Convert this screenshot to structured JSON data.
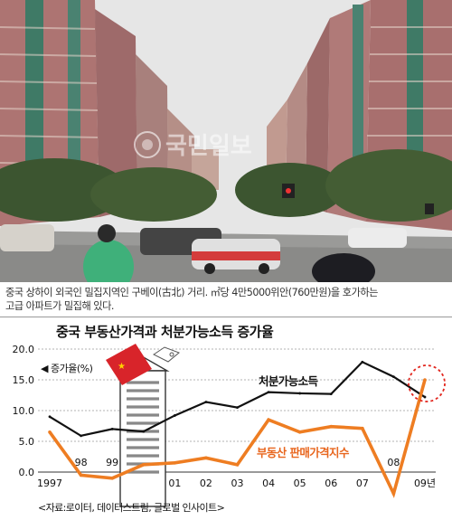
{
  "photo": {
    "watermark": "국민일보",
    "sky_color": "#e7e7e7",
    "building_color": "#b97c7c",
    "tree_color": "#3f5a32"
  },
  "caption": {
    "line1": "중국 상하이 외국인 밀집지역인 구베이(古北) 거리. ㎡당 4만5000위안(760만원)을 호가하는",
    "line2": "고급 아파트가 밀집해 있다."
  },
  "chart_data": {
    "type": "line",
    "title": "중국 부동산가격과 처분가능소득 증가율",
    "ylabel": "증가율(%)",
    "ylim": [
      0,
      20
    ],
    "yticks": [
      "0.0",
      "5.0",
      "10.0",
      "15.0",
      "20.0"
    ],
    "x": [
      1997,
      1998,
      1999,
      2000,
      2001,
      2002,
      2003,
      2004,
      2005,
      2006,
      2007,
      2008,
      2009
    ],
    "xtick_labels": [
      "1997",
      "98",
      "99",
      "2000",
      "01",
      "02",
      "03",
      "04",
      "05",
      "06",
      "07",
      "08",
      "09년"
    ],
    "series": [
      {
        "name": "처분가능소득",
        "color": "#111111",
        "values": [
          9.0,
          5.9,
          7.0,
          6.6,
          9.2,
          11.4,
          10.5,
          13.0,
          12.8,
          12.7,
          17.9,
          15.5,
          12.2
        ]
      },
      {
        "name": "부동산 판매가격지수",
        "color": "#ee7d22",
        "values": [
          6.5,
          -0.5,
          -1.0,
          1.2,
          1.5,
          2.3,
          1.2,
          8.5,
          6.5,
          7.4,
          7.1,
          -3.5,
          15.0
        ]
      }
    ],
    "source": "<자료:로이터, 데이터스트림, 글로벌 인사이트>"
  }
}
